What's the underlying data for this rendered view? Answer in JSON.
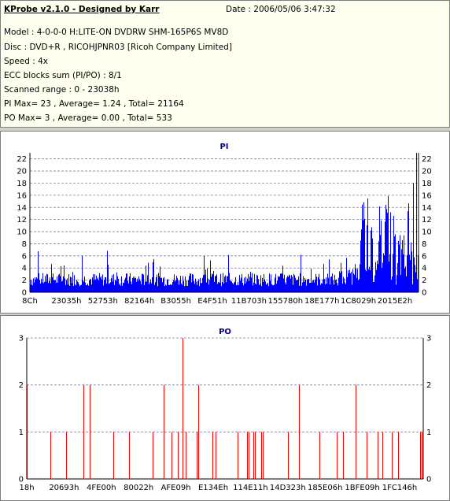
{
  "header": {
    "title": "KProbe v2.1.0 - Designed by Karr",
    "date": "Date : 2006/05/06 3:47:32",
    "lines": [
      "Model : 4-0-0-0 H:LITE-ON DVDRW SHM-165P6S MV8D",
      "Disc : DVD+R , RICOHJPNR03 [Ricoh Company Limited]",
      "Speed : 4x",
      "ECC blocks sum (PI/PO) : 8/1",
      "Scanned range : 0 - 23038h",
      "PI Max= 23 , Average= 1.24 , Total= 21164",
      "PO Max= 3 , Average= 0.00 , Total= 533"
    ]
  },
  "chart_data": [
    {
      "type": "bar",
      "title": "PI",
      "color": "#0000ff",
      "ylim": [
        0,
        23
      ],
      "yticks": [
        0,
        2,
        4,
        6,
        8,
        10,
        12,
        14,
        16,
        18,
        20,
        22
      ],
      "xtick_labels": [
        "8Ch",
        "23035h",
        "52753h",
        "82164h",
        "B3055h",
        "E4F51h",
        "11B703h",
        "155780h",
        "18E177h",
        "1C8029h",
        "2015E2h"
      ],
      "grid": true,
      "max": 23,
      "average": 1.24
    },
    {
      "type": "bar",
      "title": "PO",
      "color": "#ff0000",
      "ylim": [
        0,
        3
      ],
      "yticks": [
        0,
        1,
        2,
        3
      ],
      "xtick_labels": [
        "18h",
        "20693h",
        "4FE00h",
        "80022h",
        "AFE09h",
        "E134Eh",
        "114E11h",
        "14D323h",
        "185E06h",
        "1BFE09h",
        "1FC146h"
      ],
      "grid": true,
      "max": 3,
      "average": 0.0
    }
  ]
}
